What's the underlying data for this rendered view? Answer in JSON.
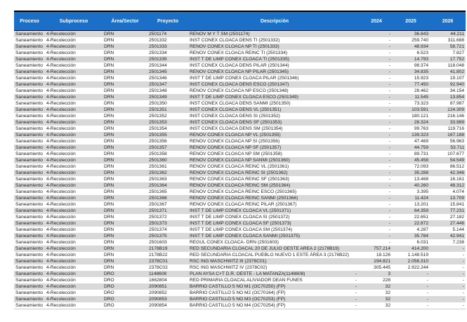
{
  "table": {
    "columns": {
      "proceso": "Proceso",
      "subproceso": "Subproceso",
      "area": "Área/Sector",
      "proyecto": "Proyecto",
      "descripcion": "Descripción",
      "y2024": "2024",
      "y2025": "2025",
      "y2026": "2026"
    },
    "header_color": "#1b6fc7",
    "stripe_color": "#d9d9d9",
    "rows": [
      {
        "proceso": "Saneamiento",
        "subproceso": "4-Recolección",
        "area": "DRN",
        "proyecto": "2501174",
        "desc": "RENOV M Y T SM (2501174)",
        "pre": "",
        "v2024": "-",
        "v2025": "36.843",
        "v2026": "44.211"
      },
      {
        "proceso": "Saneamiento",
        "subproceso": "4-Recolección",
        "area": "DRN",
        "proyecto": "2501332",
        "desc": "INST CONEX CLOACA DENS TI (2501332)",
        "pre": "",
        "v2024": "-",
        "v2025": "259.740",
        "v2026": "311.688"
      },
      {
        "proceso": "Saneamiento",
        "subproceso": "4-Recolección",
        "area": "DRN",
        "proyecto": "2501333",
        "desc": "RENOV CONEX CLOACA NP TI (2501333)",
        "pre": "",
        "v2024": "-",
        "v2025": "48.934",
        "v2026": "58.721"
      },
      {
        "proceso": "Saneamiento",
        "subproceso": "4-Recolección",
        "area": "DRN",
        "proyecto": "2501334",
        "desc": "RENOV CONEX CLOACA REINC TI (2501334)",
        "pre": "",
        "v2024": "-",
        "v2025": "6.523",
        "v2026": "7.827"
      },
      {
        "proceso": "Saneamiento",
        "subproceso": "4-Recolección",
        "area": "DRN",
        "proyecto": "2501335",
        "desc": "INST T DE LIMP CONEX CLOACA TI (2501335)",
        "pre": "",
        "v2024": "-",
        "v2025": "14.793",
        "v2026": "17.752"
      },
      {
        "proceso": "Saneamiento",
        "subproceso": "4-Recolección",
        "area": "DRN",
        "proyecto": "2501344",
        "desc": "INST CONEX CLOACA DENS PILAR (2501344)",
        "pre": "",
        "v2024": "-",
        "v2025": "98.374",
        "v2026": "118.048"
      },
      {
        "proceso": "Saneamiento",
        "subproceso": "4-Recolección",
        "area": "DRN",
        "proyecto": "2501345",
        "desc": "RENOV CONEX CLOACA NP PILAR (2501345)",
        "pre": "",
        "v2024": "-",
        "v2025": "34.835",
        "v2026": "41.802"
      },
      {
        "proceso": "Saneamiento",
        "subproceso": "4-Recolección",
        "area": "DRN",
        "proyecto": "2501346",
        "desc": "INST T DE LIMP CONEX CLOACA PILAR (2501346)",
        "pre": "",
        "v2024": "-",
        "v2025": "15.923",
        "v2026": "19.107"
      },
      {
        "proceso": "Saneamiento",
        "subproceso": "4-Recolección",
        "area": "DRN",
        "proyecto": "2501347",
        "desc": "INST CONEX CLOACA DENS ESCO (2501347)",
        "pre": "",
        "v2024": "-",
        "v2025": "77.450",
        "v2026": "92.940"
      },
      {
        "proceso": "Saneamiento",
        "subproceso": "4-Recolección",
        "area": "DRN",
        "proyecto": "2501348",
        "desc": "RENOV CONEX CLOACA NP ESCO (2501348)",
        "pre": "",
        "v2024": "-",
        "v2025": "28.462",
        "v2026": "34.154"
      },
      {
        "proceso": "Saneamiento",
        "subproceso": "4-Recolección",
        "area": "DRN",
        "proyecto": "2501349",
        "desc": "INST T DE LIMP CONEX CLOACA ESCO (2501349)",
        "pre": "",
        "v2024": "-",
        "v2025": "11.545",
        "v2026": "13.854"
      },
      {
        "proceso": "Saneamiento",
        "subproceso": "4-Recolección",
        "area": "DRN",
        "proyecto": "2501350",
        "desc": "INST CONEX CLOACA DENS SANMI (2501350)",
        "pre": "",
        "v2024": "-",
        "v2025": "73.323",
        "v2026": "87.987"
      },
      {
        "proceso": "Saneamiento",
        "subproceso": "4-Recolección",
        "area": "DRN",
        "proyecto": "2501351",
        "desc": "INST CONEX CLOACA DENS VL (2501351)",
        "pre": "",
        "v2024": "-",
        "v2025": "103.591",
        "v2026": "124.309"
      },
      {
        "proceso": "Saneamiento",
        "subproceso": "4-Recolección",
        "area": "DRN",
        "proyecto": "2501352",
        "desc": "INST CONEX CLOACA DENS SI (2501352)",
        "pre": "",
        "v2024": "-",
        "v2025": "180.121",
        "v2026": "216.146"
      },
      {
        "proceso": "Saneamiento",
        "subproceso": "4-Recolección",
        "area": "DRN",
        "proyecto": "2501353",
        "desc": "INST CONEX CLOACA DENS SF (2501353)",
        "pre": "",
        "v2024": "-",
        "v2025": "28.324",
        "v2026": "33.989"
      },
      {
        "proceso": "Saneamiento",
        "subproceso": "4-Recolección",
        "area": "DRN",
        "proyecto": "2501354",
        "desc": "INST CONEX CLOACA DENS SM (2501354)",
        "pre": "",
        "v2024": "-",
        "v2025": "99.763",
        "v2026": "119.716"
      },
      {
        "proceso": "Saneamiento",
        "subproceso": "4-Recolección",
        "area": "DRN",
        "proyecto": "2501355",
        "desc": "RENOV CONEX CLOACA NP VL (2501355)",
        "pre": "",
        "v2024": "-",
        "v2025": "139.323",
        "v2026": "167.188"
      },
      {
        "proceso": "Saneamiento",
        "subproceso": "4-Recolección",
        "area": "DRN",
        "proyecto": "2501356",
        "desc": "RENOV CONEX CLOACA NP SI (2501356)",
        "pre": "",
        "v2024": "-",
        "v2025": "47.469",
        "v2026": "56.963"
      },
      {
        "proceso": "Saneamiento",
        "subproceso": "4-Recolección",
        "area": "DRN",
        "proyecto": "2501357",
        "desc": "RENOV CONEX CLOACA NP SF (2501357)",
        "pre": "",
        "v2024": "-",
        "v2025": "44.759",
        "v2026": "53.711"
      },
      {
        "proceso": "Saneamiento",
        "subproceso": "4-Recolección",
        "area": "DRN",
        "proyecto": "2501358",
        "desc": "RENOV CONEX CLOACA NP SM (2501358)",
        "pre": "",
        "v2024": "-",
        "v2025": "89.731",
        "v2026": "107.677"
      },
      {
        "proceso": "Saneamiento",
        "subproceso": "4-Recolección",
        "area": "DRN",
        "proyecto": "2501360",
        "desc": "RENOV CONEX CLOACA NP SANMI (2501360)",
        "pre": "",
        "v2024": "-",
        "v2025": "45.458",
        "v2026": "54.549"
      },
      {
        "proceso": "Saneamiento",
        "subproceso": "4-Recolección",
        "area": "DRN",
        "proyecto": "2501361",
        "desc": "RENOV CONEX CLOACA REINC VL (2501361)",
        "pre": "",
        "v2024": "-",
        "v2025": "72.093",
        "v2026": "86.512"
      },
      {
        "proceso": "Saneamiento",
        "subproceso": "4-Recolección",
        "area": "DRN",
        "proyecto": "2501362",
        "desc": "RENOV CONEX CLOACA REINC SI (2501362)",
        "pre": "",
        "v2024": "-",
        "v2025": "35.288",
        "v2026": "42.346"
      },
      {
        "proceso": "Saneamiento",
        "subproceso": "4-Recolección",
        "area": "DRN",
        "proyecto": "2501363",
        "desc": "RENOV CONEX CLOACA REINC SF (2501363)",
        "pre": "",
        "v2024": "-",
        "v2025": "13.468",
        "v2026": "16.161"
      },
      {
        "proceso": "Saneamiento",
        "subproceso": "4-Recolección",
        "area": "DRN",
        "proyecto": "2501364",
        "desc": "RENOV CONEX CLOACA REINC SM (2501364)",
        "pre": "",
        "v2024": "-",
        "v2025": "40.260",
        "v2026": "48.312"
      },
      {
        "proceso": "Saneamiento",
        "subproceso": "4-Recolección",
        "area": "DRN",
        "proyecto": "2501365",
        "desc": "RENOV CONEX CLOACA REINC ESCO (2501365)",
        "pre": "",
        "v2024": "-",
        "v2025": "3.395",
        "v2026": "4.074"
      },
      {
        "proceso": "Saneamiento",
        "subproceso": "4-Recolección",
        "area": "DRN",
        "proyecto": "2501366",
        "desc": "RENOV CONEX CLOACA REINC SANMI (2501366)",
        "pre": "",
        "v2024": "-",
        "v2025": "11.424",
        "v2026": "13.709"
      },
      {
        "proceso": "Saneamiento",
        "subproceso": "4-Recolección",
        "area": "DRN",
        "proyecto": "2501367",
        "desc": "RENOV CONEX CLOACA REINC PILAR (2501367)",
        "pre": "",
        "v2024": "-",
        "v2025": "13.201",
        "v2026": "15.841"
      },
      {
        "proceso": "Saneamiento",
        "subproceso": "4-Recolección",
        "area": "DRN",
        "proyecto": "2501371",
        "desc": "INST T DE LIMP CONEX CLOACA VL (2501371)",
        "pre": "",
        "v2024": "-",
        "v2025": "64.359",
        "v2026": "77.231"
      },
      {
        "proceso": "Saneamiento",
        "subproceso": "4-Recolección",
        "area": "DRN",
        "proyecto": "2501372",
        "desc": "INST T DE LIMP CONEX CLOACA SI (2501372)",
        "pre": "",
        "v2024": "-",
        "v2025": "22.651",
        "v2026": "27.182"
      },
      {
        "proceso": "Saneamiento",
        "subproceso": "4-Recolección",
        "area": "DRN",
        "proyecto": "2501373",
        "desc": "INST T DE LIMP CONEX CLOACA SF (2501373)",
        "pre": "",
        "v2024": "-",
        "v2025": "22.872",
        "v2026": "27.446"
      },
      {
        "proceso": "Saneamiento",
        "subproceso": "4-Recolección",
        "area": "DRN",
        "proyecto": "2501374",
        "desc": "INST T DE LIMP CONEX CLOACA SM (2501374)",
        "pre": "",
        "v2024": "-",
        "v2025": "4.287",
        "v2026": "5.144"
      },
      {
        "proceso": "Saneamiento",
        "subproceso": "4-Recolección",
        "area": "DRN",
        "proyecto": "2501375",
        "desc": "INST T DE LIMP CONEX CLOACA SANMI (2501375)",
        "pre": "",
        "v2024": "-",
        "v2025": "35.784",
        "v2026": "42.941"
      },
      {
        "proceso": "Saneamiento",
        "subproceso": "4-Recolección",
        "area": "DRN",
        "proyecto": "2501603",
        "desc": "REGUL CONEX CLOACA- DRN (2501603)",
        "pre": "",
        "v2024": "-",
        "v2025": "6.031",
        "v2026": "7.238"
      },
      {
        "proceso": "Saneamiento",
        "subproceso": "4-Recolección",
        "area": "DRN",
        "proyecto": "2178B19",
        "desc": "RED SECUNDARIA CLOACAL 20 DE JULIO OESTE AREA 2 (2178B19)",
        "pre": "",
        "v2024": "757.214",
        "v2025": "414.200",
        "v2026": "-"
      },
      {
        "proceso": "Saneamiento",
        "subproceso": "4-Recolección",
        "area": "DRN",
        "proyecto": "2178B22",
        "desc": "RED SECUNDARIA CLOACAL PUEBLO NUEVO 1 ESTE ÁREA 3 (2178B22)",
        "pre": "",
        "v2024": "18.126",
        "v2025": "1.148.519",
        "v2026": "-"
      },
      {
        "proceso": "Saneamiento",
        "subproceso": "4-Recolección",
        "area": "DRN",
        "proyecto": "2378C01",
        "desc": "RSC ING MASCHWITZ III (2378C01)",
        "pre": "",
        "v2024": "194.821",
        "v2025": "2.056.310",
        "v2026": "-"
      },
      {
        "proceso": "Saneamiento",
        "subproceso": "4-Recolección",
        "area": "DRN",
        "proyecto": "2378C02",
        "desc": "RSC ING MASCHWITZ IV (2378C02)",
        "pre": "",
        "v2024": "305.445",
        "v2025": "2.922.244",
        "v2026": "-"
      },
      {
        "proceso": "Saneamiento",
        "subproceso": "4-Recolección",
        "area": "DRO",
        "proyecto": "1148608",
        "desc": "PLAN AYSA C+T D.R. OESTE - LA MATANZA(1148608)",
        "pre": "-",
        "v2024": "3",
        "v2025": "-",
        "v2026": "-"
      },
      {
        "proceso": "Saneamiento",
        "subproceso": "4-Recolección",
        "area": "DRO",
        "proyecto": "1662804",
        "desc": "RED PRIMARIA CLOACAL ALIVIADOR DEAN FUNES",
        "pre": "-",
        "v2024": "228",
        "v2025": "-",
        "v2026": "-"
      },
      {
        "proceso": "Saneamiento",
        "subproceso": "4-Recolección",
        "area": "DRO",
        "proyecto": "2090851",
        "desc": "BARRIO CASTILLO 5 NO M1 (OC70250) (FP)",
        "pre": "-",
        "v2024": "32",
        "v2025": "-",
        "v2026": "-"
      },
      {
        "proceso": "Saneamiento",
        "subproceso": "4-Recolección",
        "area": "DRO",
        "proyecto": "2090852",
        "desc": "BARRIO CASTILLO 5 NO M2 (OC70164) (FP)",
        "pre": "-",
        "v2024": "32",
        "v2025": "-",
        "v2026": "-"
      },
      {
        "proceso": "Saneamiento",
        "subproceso": "4-Recolección",
        "area": "DRO",
        "proyecto": "2090853",
        "desc": "BARRIO CASTILLO 5 NO M3 (OC70253) (FP)",
        "pre": "-",
        "v2024": "32",
        "v2025": "-",
        "v2026": "-"
      },
      {
        "proceso": "Saneamiento",
        "subproceso": "4-Recolección",
        "area": "DRO",
        "proyecto": "2090854",
        "desc": "BARRIO CASTILLO 5 NO M4 (OC70254) (FP)",
        "pre": "-",
        "v2024": "32",
        "v2025": "-",
        "v2026": "-"
      }
    ]
  }
}
